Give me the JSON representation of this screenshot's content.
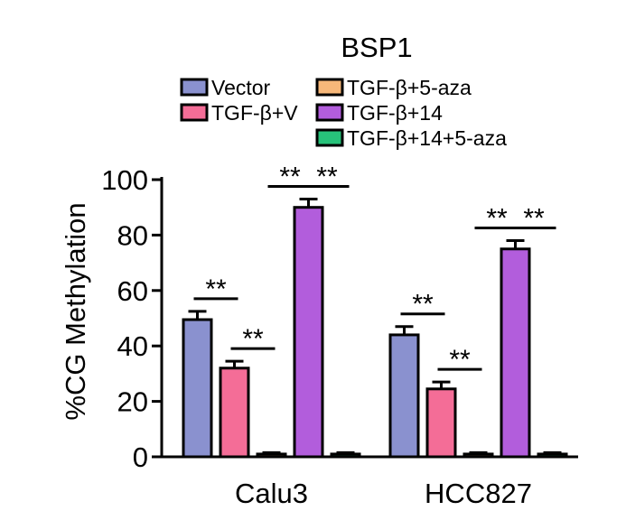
{
  "chart_data": {
    "type": "bar",
    "title": "BSP1",
    "xlabel": "",
    "ylabel": "%CG Methylation",
    "ylim": [
      0,
      100
    ],
    "yticks": [
      0,
      20,
      40,
      60,
      80,
      100
    ],
    "grid": false,
    "legend_position": "top",
    "categories": [
      "Calu3",
      "HCC827"
    ],
    "series": [
      {
        "name": "Vector",
        "color": "#8a91cf",
        "values": [
          49.5,
          44.0
        ],
        "errors": [
          3.0,
          3.0
        ]
      },
      {
        "name": "TGF-β+V",
        "color": "#f46d97",
        "values": [
          32.0,
          24.5
        ],
        "errors": [
          2.5,
          2.5
        ]
      },
      {
        "name": "TGF-β+5-aza",
        "color": "#f7b87a",
        "values": [
          1.0,
          1.0
        ],
        "errors": [
          0.5,
          0.5
        ]
      },
      {
        "name": "TGF-β+14",
        "color": "#b25ddc",
        "values": [
          90.0,
          75.0
        ],
        "errors": [
          3.0,
          3.0
        ]
      },
      {
        "name": "TGF-β+14+5-aza",
        "color": "#27c27a",
        "values": [
          1.0,
          1.0
        ],
        "errors": [
          0.5,
          0.5
        ]
      }
    ],
    "significance": [
      {
        "category": 0,
        "from": 0,
        "to": 1,
        "label": "**"
      },
      {
        "category": 0,
        "from": 1,
        "to": 2,
        "label": "**"
      },
      {
        "category": 0,
        "from": 2,
        "to": 3,
        "label": "**"
      },
      {
        "category": 0,
        "from": 3,
        "to": 4,
        "label": "**"
      },
      {
        "category": 1,
        "from": 0,
        "to": 1,
        "label": "**"
      },
      {
        "category": 1,
        "from": 1,
        "to": 2,
        "label": "**"
      },
      {
        "category": 1,
        "from": 2,
        "to": 3,
        "label": "**"
      },
      {
        "category": 1,
        "from": 3,
        "to": 4,
        "label": "**"
      }
    ]
  }
}
